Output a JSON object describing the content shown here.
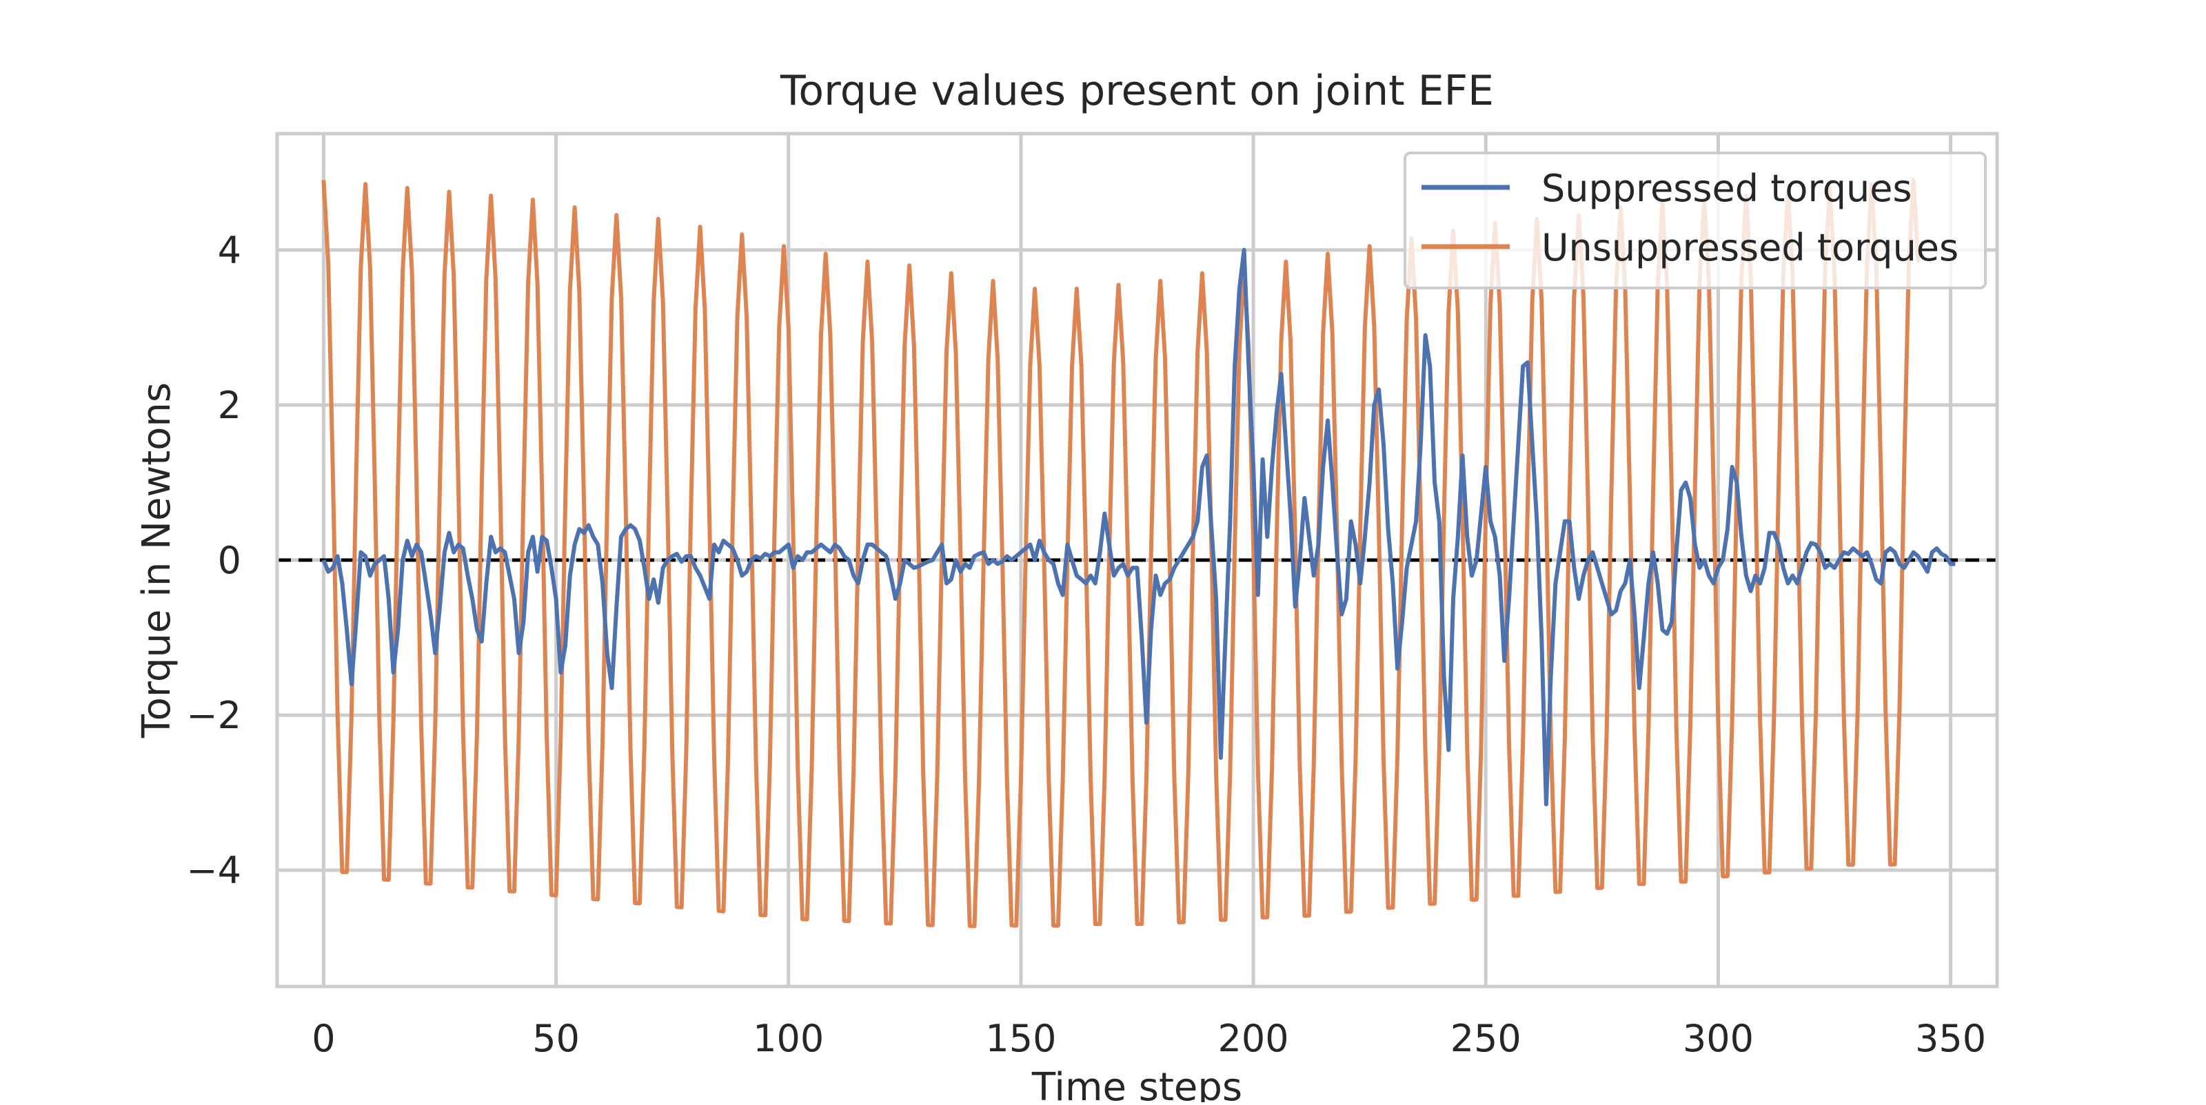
{
  "chart_data": {
    "type": "line",
    "title": "Torque values present on joint EFE",
    "xlabel": "Time steps",
    "ylabel": "Torque in Newtons",
    "xlim": [
      -10,
      360
    ],
    "ylim": [
      -5.5,
      5.5
    ],
    "xticks": [
      0,
      50,
      100,
      150,
      200,
      250,
      300,
      350
    ],
    "xtick_labels": [
      "0",
      "50",
      "100",
      "150",
      "200",
      "250",
      "300",
      "350"
    ],
    "yticks": [
      -4,
      -2,
      0,
      2,
      4
    ],
    "ytick_labels": [
      "−4",
      "−2",
      "0",
      "2",
      "4"
    ],
    "grid": true,
    "legend_position": "top-right",
    "reference_line": {
      "y": 0,
      "style": "dashed",
      "color": "#000000"
    },
    "series": [
      {
        "name": "Suppressed torques",
        "color": "#4c72b0",
        "x_start": 0,
        "x_step": 1,
        "values": [
          0,
          -0.15,
          -0.1,
          0.05,
          -0.3,
          -0.9,
          -1.6,
          -0.8,
          0.1,
          0.05,
          -0.2,
          -0.05,
          0,
          0.05,
          -0.5,
          -1.45,
          -0.9,
          0,
          0.25,
          0.05,
          0.2,
          0.1,
          -0.3,
          -0.7,
          -1.2,
          -0.6,
          0.1,
          0.35,
          0.1,
          0.2,
          0.15,
          -0.2,
          -0.5,
          -0.9,
          -1.05,
          -0.3,
          0.3,
          0.1,
          0.15,
          0.1,
          -0.2,
          -0.5,
          -1.2,
          -0.8,
          0.1,
          0.3,
          -0.15,
          0.3,
          0.25,
          -0.1,
          -0.5,
          -1.45,
          -1.1,
          -0.2,
          0.2,
          0.4,
          0.35,
          0.45,
          0.3,
          0.2,
          -0.3,
          -1.2,
          -1.65,
          -0.6,
          0.3,
          0.4,
          0.45,
          0.4,
          0.25,
          -0.1,
          -0.5,
          -0.25,
          -0.55,
          -0.1,
          0.0,
          0.05,
          0.08,
          -0.02,
          0.05,
          0.05,
          -0.1,
          -0.2,
          -0.35,
          -0.5,
          0.2,
          0.1,
          0.25,
          0.2,
          0.15,
          0.0,
          -0.2,
          -0.15,
          0,
          0.05,
          0.02,
          0.08,
          0.05,
          0.1,
          0.1,
          0.15,
          0.2,
          -0.1,
          0.05,
          0.0,
          0.1,
          0.1,
          0.15,
          0.2,
          0.15,
          0.1,
          0.2,
          0.15,
          0.05,
          0.0,
          -0.2,
          -0.3,
          0.0,
          0.2,
          0.2,
          0.15,
          0.1,
          0.05,
          -0.2,
          -0.5,
          -0.3,
          0.0,
          -0.05,
          -0.1,
          -0.08,
          -0.05,
          -0.02,
          0.0,
          0.1,
          0.2,
          -0.3,
          -0.25,
          0.0,
          -0.15,
          -0.05,
          -0.1,
          0.05,
          0.08,
          0.1,
          -0.05,
          0.0,
          -0.05,
          -0.02,
          0.05,
          0.0,
          0.05,
          0.1,
          0.15,
          0.2,
          0.0,
          0.25,
          0.1,
          0.0,
          -0.05,
          -0.3,
          -0.45,
          0.2,
          0.0,
          -0.2,
          -0.25,
          -0.3,
          -0.2,
          -0.3,
          0.1,
          0.6,
          0.2,
          -0.2,
          -0.1,
          -0.05,
          -0.2,
          -0.1,
          -0.1,
          -1.0,
          -2.1,
          -0.9,
          -0.2,
          -0.45,
          -0.3,
          -0.25,
          -0.1,
          0.0,
          0.1,
          0.2,
          0.3,
          0.5,
          1.2,
          1.35,
          0.4,
          -0.5,
          -2.55,
          -1.0,
          0.5,
          2.5,
          3.5,
          4.0,
          2.5,
          1.2,
          -0.45,
          1.3,
          0.3,
          1.2,
          1.9,
          2.4,
          1.5,
          0.6,
          -0.6,
          0.0,
          0.8,
          0.3,
          -0.2,
          0.2,
          1.2,
          1.8,
          1.0,
          0.1,
          -0.7,
          -0.5,
          0.5,
          0.2,
          -0.3,
          0.3,
          1.0,
          2.0,
          2.2,
          1.5,
          0.4,
          -0.3,
          -1.4,
          -0.8,
          -0.1,
          0.2,
          0.5,
          1.5,
          2.9,
          2.5,
          1.0,
          0.5,
          -1.5,
          -2.45,
          -0.5,
          0.3,
          1.35,
          0.3,
          -0.2,
          0.0,
          0.6,
          1.2,
          0.5,
          0.3,
          -0.2,
          -1.3,
          -0.5,
          0.5,
          1.5,
          2.5,
          2.55,
          1.5,
          0.5,
          -1.0,
          -3.15,
          -1.5,
          -0.3,
          0.1,
          0.5,
          0.5,
          -0.1,
          -0.5,
          -0.2,
          0.0,
          0.1,
          -0.1,
          -0.3,
          -0.5,
          -0.7,
          -0.65,
          -0.4,
          -0.3,
          0.0,
          -0.7,
          -1.65,
          -1.0,
          -0.3,
          0.1,
          -0.3,
          -0.9,
          -0.95,
          -0.8,
          0.1,
          0.9,
          1.0,
          0.8,
          0.2,
          -0.1,
          0.0,
          -0.2,
          -0.3,
          -0.1,
          0.0,
          0.4,
          1.2,
          1.0,
          0.3,
          -0.2,
          -0.4,
          -0.2,
          -0.3,
          -0.1,
          0.35,
          0.35,
          0.2,
          -0.1,
          -0.3,
          -0.2,
          -0.3,
          -0.1,
          0.1,
          0.22,
          0.2,
          0.1,
          -0.1,
          -0.05,
          -0.1,
          0.0,
          0.1,
          0.08,
          0.15,
          0.1,
          0.05,
          0.1,
          -0.05,
          -0.25,
          -0.3,
          0.1,
          0.15,
          0.1,
          -0.05,
          -0.1,
          0.0,
          0.1,
          0.05,
          -0.05,
          -0.15,
          0.1,
          0.15,
          0.08,
          0.05,
          -0.05,
          -0.05
        ]
      },
      {
        "name": "Unsuppressed torques",
        "color": "#dd8452",
        "x_start": 0,
        "x_step": 1,
        "period": 9,
        "trough_values": [
          -4.3,
          -4.4,
          -4.45,
          -4.5,
          -4.55,
          -4.6,
          -4.65,
          -4.7,
          -4.75,
          -4.8,
          -4.85,
          -4.9,
          -4.92,
          -4.95,
          -4.97,
          -4.98,
          -4.97,
          -4.97,
          -4.95,
          -4.95,
          -4.93,
          -4.9,
          -4.87,
          -4.85,
          -4.8,
          -4.75,
          -4.7,
          -4.65,
          -4.6,
          -4.55,
          -4.5,
          -4.45,
          -4.42,
          -4.35,
          -4.3,
          -4.25,
          -4.2,
          -4.2
        ],
        "peak_values": [
          4.9,
          4.85,
          4.8,
          4.75,
          4.7,
          4.65,
          4.55,
          4.45,
          4.4,
          4.3,
          4.2,
          4.05,
          3.95,
          3.85,
          3.8,
          3.7,
          3.6,
          3.5,
          3.5,
          3.55,
          3.6,
          3.7,
          3.75,
          3.85,
          3.95,
          4.05,
          4.15,
          4.25,
          4.35,
          4.4,
          4.45,
          4.55,
          4.6,
          4.65,
          4.7,
          4.75,
          4.8,
          4.85,
          4.9
        ],
        "last_x": 343
      }
    ]
  }
}
